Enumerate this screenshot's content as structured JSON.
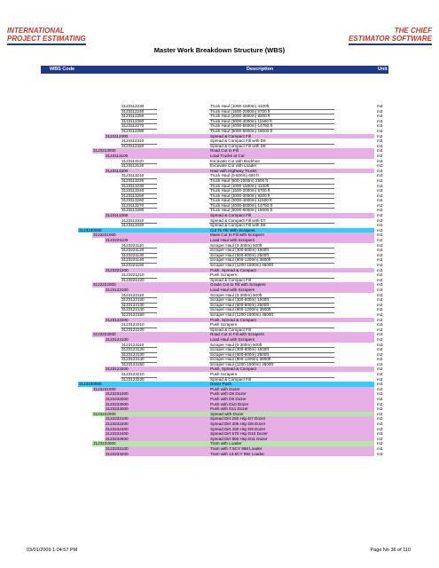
{
  "logos": {
    "left": [
      "INTERNATIONAL",
      "PROJECT ESTIMATING"
    ],
    "right": [
      "THE CHIEF",
      "ESTIMATOR SOFTWARE"
    ]
  },
  "title": "Master Work Breakdown Structure (WBS)",
  "columns": {
    "code": "WBS Code",
    "description": "Description",
    "unit": "Unit"
  },
  "rows": [
    {
      "code": "3123112230",
      "desc": "Truck Haul (1000-1500m) 4100ft",
      "unit": "m3",
      "lvl": 4
    },
    {
      "code": "3123112240",
      "desc": "Truck Haul (1500-2000m) 5700 ft",
      "unit": "m3",
      "lvl": 4
    },
    {
      "code": "3123112250",
      "desc": "Truck Haul (2000-3000m) 8200 ft",
      "unit": "m3",
      "lvl": 4
    },
    {
      "code": "3123112260",
      "desc": "Truck Haul (3000-4000m) 11500 ft",
      "unit": "m3",
      "lvl": 4
    },
    {
      "code": "3123112270",
      "desc": "Truck Haul (4000-5000m) 14750 ft",
      "unit": "m3",
      "lvl": 4
    },
    {
      "code": "3123112280",
      "desc": "Truck Haul (5000-6000m) 18000 ft",
      "unit": "m3",
      "lvl": 4
    },
    {
      "code": "3123112300",
      "desc": "Spread & Compact Fill",
      "unit": "m3",
      "lvl": 3,
      "color": "pink"
    },
    {
      "code": "3123112310",
      "desc": "Spread & Compact Fill with D9",
      "unit": "m3",
      "lvl": 4
    },
    {
      "code": "3123112320",
      "desc": "Spread & Compact Fill with D8",
      "unit": "m3",
      "lvl": 4
    },
    {
      "code": "3123213000",
      "desc": "Road Cut to Fill",
      "unit": "m3",
      "lvl": 2,
      "color": "pink"
    },
    {
      "code": "3123113100",
      "desc": "Load Trucks at Cut",
      "unit": "m3",
      "lvl": 3,
      "color": "pink"
    },
    {
      "code": "3123113110",
      "desc": "Excavate Cut with Backhoe",
      "unit": "m3",
      "lvl": 4
    },
    {
      "code": "3123113120",
      "desc": "Excavate Cut with Loader",
      "unit": "m3",
      "lvl": 4
    },
    {
      "code": "3123113200",
      "desc": "Haul with Highway Trucks",
      "unit": "m3",
      "lvl": 3,
      "color": "pink"
    },
    {
      "code": "3123113210",
      "desc": "Truck Haul (0-500m) 600 ft",
      "unit": "m3",
      "lvl": 4
    },
    {
      "code": "3123113220",
      "desc": "Truck Haul (500-1000m) 2500 ft",
      "unit": "m3",
      "lvl": 4
    },
    {
      "code": "3123113230",
      "desc": "Truck Haul (1000-1500m) 4100ft",
      "unit": "m3",
      "lvl": 4
    },
    {
      "code": "3123113240",
      "desc": "Truck Haul (1500-2000m) 5700 ft",
      "unit": "m3",
      "lvl": 4
    },
    {
      "code": "3123113250",
      "desc": "Truck Haul (2000-3000m) 8200 ft",
      "unit": "m3",
      "lvl": 4
    },
    {
      "code": "3123113260",
      "desc": "Truck Haul (3000-4000m) 11500 ft",
      "unit": "m3",
      "lvl": 4
    },
    {
      "code": "3123113270",
      "desc": "Truck Haul (4000-5000m) 14750 ft",
      "unit": "m3",
      "lvl": 4
    },
    {
      "code": "3123113280",
      "desc": "Truck Haul (5000-6000m) 18000 ft",
      "unit": "m3",
      "lvl": 4
    },
    {
      "code": "3123113300",
      "desc": "Spread & Compact Fill",
      "unit": "m3",
      "lvl": 3,
      "color": "pink"
    },
    {
      "code": "3123113310",
      "desc": "Spread & Compact Fill with D7",
      "unit": "m3",
      "lvl": 4
    },
    {
      "code": "3123113320",
      "desc": "Spread & Compact Fill with D8",
      "unit": "m3",
      "lvl": 4
    },
    {
      "code": "3123220000",
      "desc": "Cut To Fill With Scrapers",
      "unit": "m3",
      "lvl": 1,
      "color": "cyan"
    },
    {
      "code": "3123221000",
      "desc": "Mass Cut to Fill with Scrapers",
      "unit": "m3",
      "lvl": 2,
      "color": "pink"
    },
    {
      "code": "3123221100",
      "desc": "Load Haul with Scrapers",
      "unit": "m3",
      "lvl": 3,
      "color": "pink"
    },
    {
      "code": "3123221110",
      "desc": "Scraper Haul (0-300m) 500ft",
      "unit": "m3",
      "lvl": 4
    },
    {
      "code": "3123221120",
      "desc": "Scraper Haul (300-600m) 1500ft",
      "unit": "m3",
      "lvl": 4
    },
    {
      "code": "3123221130",
      "desc": "Scraper Haul (600-900m) 2500ft",
      "unit": "m3",
      "lvl": 4
    },
    {
      "code": "3123221140",
      "desc": "Scraper Haul (900-1200m) 3800ft",
      "unit": "m3",
      "lvl": 4
    },
    {
      "code": "3123221150",
      "desc": "Scraper Haul (1200-1500m) 4500ft",
      "unit": "m3",
      "lvl": 4
    },
    {
      "code": "3123221200",
      "desc": "Push, Spread & Compact",
      "unit": "m3",
      "lvl": 3,
      "color": "pink"
    },
    {
      "code": "3123221210",
      "desc": "Push Scrapers",
      "unit": "m3",
      "lvl": 4
    },
    {
      "code": "3123221220",
      "desc": "Spread & Compact Fill",
      "unit": "m3",
      "lvl": 4
    },
    {
      "code": "3123222000",
      "desc": "Grade Cut to Fill with Scrapers",
      "unit": "m3",
      "lvl": 2,
      "color": "pink"
    },
    {
      "code": "3123122100",
      "desc": "Load Haul with Scrapers",
      "unit": "m3",
      "lvl": 3,
      "color": "pink"
    },
    {
      "code": "3123122110",
      "desc": "Scraper Haul (0-300m) 500ft",
      "unit": "m3",
      "lvl": 4
    },
    {
      "code": "3123122120",
      "desc": "Scraper Haul (300-600m) 1500ft",
      "unit": "m3",
      "lvl": 4
    },
    {
      "code": "3123122130",
      "desc": "Scraper Haul (600-900m) 2500ft",
      "unit": "m3",
      "lvl": 4
    },
    {
      "code": "3123122140",
      "desc": "Scraper Haul (900-1200m) 3800ft",
      "unit": "m3",
      "lvl": 4
    },
    {
      "code": "3123122150",
      "desc": "Scraper Haul (1200-1500m) 4500ft",
      "unit": "m3",
      "lvl": 4
    },
    {
      "code": "3123122200",
      "desc": "Push, Spread & Compact",
      "unit": "m3",
      "lvl": 3,
      "color": "pink"
    },
    {
      "code": "3123122210",
      "desc": "Push Scrapers",
      "unit": "m3",
      "lvl": 4
    },
    {
      "code": "3123122220",
      "desc": "Spread & Compact Fill",
      "unit": "m3",
      "lvl": 4
    },
    {
      "code": "3123223000",
      "desc": "Road Cut to Fill with Scrapers",
      "unit": "m3",
      "lvl": 2,
      "color": "pink"
    },
    {
      "code": "3123123100",
      "desc": "Load Haul with Scrapers",
      "unit": "m3",
      "lvl": 3,
      "color": "pink"
    },
    {
      "code": "3123123110",
      "desc": "Scraper Haul (0-300m) 500ft",
      "unit": "m3",
      "lvl": 4
    },
    {
      "code": "3123123120",
      "desc": "Scraper Haul (300-600m) 1500ft",
      "unit": "m3",
      "lvl": 4
    },
    {
      "code": "3123123130",
      "desc": "Scraper Haul (600-900m) 2500ft",
      "unit": "m3",
      "lvl": 4
    },
    {
      "code": "3123123140",
      "desc": "Scraper Haul (900-1200m) 3800ft",
      "unit": "m3",
      "lvl": 4
    },
    {
      "code": "3123123150",
      "desc": "Scraper Haul (1200-1500m) 4500ft",
      "unit": "m3",
      "lvl": 4
    },
    {
      "code": "3123123200",
      "desc": "Push, Spread & Compact",
      "unit": "m3",
      "lvl": 3,
      "color": "pink"
    },
    {
      "code": "3123123210",
      "desc": "Push Scrapers",
      "unit": "m3",
      "lvl": 4
    },
    {
      "code": "3123123220",
      "desc": "Spread & Compact Fill",
      "unit": "m3",
      "lvl": 4
    },
    {
      "code": "3123230000",
      "desc": "Dozer Push",
      "unit": "m3",
      "lvl": 1,
      "color": "cyan"
    },
    {
      "code": "3123231000",
      "desc": "Push with Dozer",
      "unit": "m3",
      "lvl": 2,
      "color": "pink"
    },
    {
      "code": "3123231000",
      "desc": "Push with D8 Dozer",
      "unit": "m3",
      "lvl": 3,
      "color": "pink"
    },
    {
      "code": "3123232000",
      "desc": "Push with D9 Dozer",
      "unit": "m3",
      "lvl": 3,
      "color": "pink"
    },
    {
      "code": "3123233000",
      "desc": "Push with D10 Dozer",
      "unit": "m3",
      "lvl": 3,
      "color": "pink"
    },
    {
      "code": "3123234000",
      "desc": "Push with D11 Dozer",
      "unit": "m3",
      "lvl": 3,
      "color": "pink"
    },
    {
      "code": "3123232000",
      "desc": "Spread with Dozer",
      "unit": "m3",
      "lvl": 2,
      "color": "lime"
    },
    {
      "code": "3123232100",
      "desc": "Spread Dirt 250 Hsp D7 Dozer",
      "unit": "m3",
      "lvl": 3,
      "color": "pink"
    },
    {
      "code": "3123232200",
      "desc": "Spread Dirt 305 Hsp D8 Dozer",
      "unit": "m3",
      "lvl": 3,
      "color": "pink"
    },
    {
      "code": "3123232300",
      "desc": "Spread Dirt 400 Hsp D9 Dozer",
      "unit": "m3",
      "lvl": 3,
      "color": "pink"
    },
    {
      "code": "3123232400",
      "desc": "Spread Dirt 570 Hsp D10 Dozer",
      "unit": "m3",
      "lvl": 3,
      "color": "pink"
    },
    {
      "code": "3123232500",
      "desc": "Spread Dirt 850 Hsp D11 Dozer",
      "unit": "m3",
      "lvl": 3,
      "color": "pink"
    },
    {
      "code": "3123233000",
      "desc": "Tram with Loader",
      "unit": "m3",
      "lvl": 2,
      "color": "lime"
    },
    {
      "code": "3123233100",
      "desc": "Tram with 7.5CY 988 Loader",
      "unit": "m3",
      "lvl": 3,
      "color": "pink"
    },
    {
      "code": "3123233200",
      "desc": "Tram with 13.5CY 992 Loader",
      "unit": "m3",
      "lvl": 3,
      "color": "pink"
    }
  ],
  "footer": {
    "left": "03/01/2009 1:04:57 PM",
    "right": "Page No 36 of 110"
  },
  "colors": {
    "header": "#1f3a8a",
    "cyan": "#33ccff",
    "pink": "#e6b0e6",
    "lime": "#b3e6a8"
  }
}
